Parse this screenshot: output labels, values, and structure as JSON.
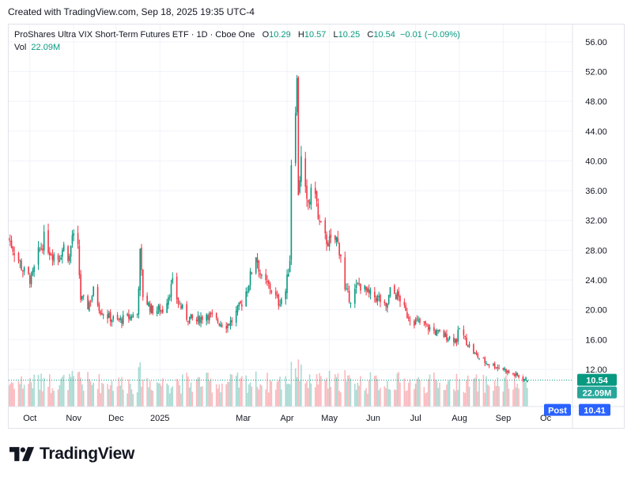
{
  "header": {
    "created_text": "Created with TradingView.com, Sep 18, 2025 19:35 UTC-4"
  },
  "legend": {
    "symbol": "ProShares Ultra VIX Short-Term Futures ETF · 1D · Cboe One",
    "o_label": "O",
    "o_value": "10.29",
    "h_label": "H",
    "h_value": "10.57",
    "l_label": "L",
    "l_value": "10.25",
    "c_label": "C",
    "c_value": "10.54",
    "change": "−0.01 (−0.09%)",
    "vol_label": "Vol",
    "vol_value": "22.09M"
  },
  "badges": {
    "price": "10.54",
    "volume": "22.09M",
    "post_label": "Post",
    "post_value": "10.41"
  },
  "brand": {
    "name": "TradingView"
  },
  "colors": {
    "up": "#089981",
    "down": "#f23645",
    "grid": "#f0f3fa",
    "badge_blue": "#2962ff"
  },
  "chart_data": {
    "type": "candlestick",
    "y_axis": {
      "position": "right",
      "ticks": [
        "12.00",
        "16.00",
        "20.00",
        "24.00",
        "28.00",
        "32.00",
        "36.00",
        "40.00",
        "44.00",
        "48.00",
        "52.00",
        "56.00"
      ],
      "range": [
        7.0,
        58.0
      ]
    },
    "x_axis": {
      "labels": [
        "Oct",
        "Nov",
        "Dec",
        "2025",
        "Mar",
        "Apr",
        "May",
        "Jun",
        "Jul",
        "Aug",
        "Sep",
        "Oc"
      ],
      "range": [
        "2024-09-16",
        "2025-10-20"
      ]
    },
    "grid": true,
    "price_anchors": [
      [
        "2024-09-16",
        29.5
      ],
      [
        "2024-09-20",
        28.0
      ],
      [
        "2024-09-27",
        25.0
      ],
      [
        "2024-10-02",
        24.0
      ],
      [
        "2024-10-07",
        27.5
      ],
      [
        "2024-10-11",
        29.5
      ],
      [
        "2024-10-15",
        28.0
      ],
      [
        "2024-10-21",
        27.0
      ],
      [
        "2024-10-25",
        28.5
      ],
      [
        "2024-10-29",
        27.0
      ],
      [
        "2024-10-31",
        30.0
      ],
      [
        "2024-11-04",
        28.0
      ],
      [
        "2024-11-06",
        21.5
      ],
      [
        "2024-11-11",
        20.5
      ],
      [
        "2024-11-15",
        22.5
      ],
      [
        "2024-11-20",
        20.0
      ],
      [
        "2024-11-26",
        19.0
      ],
      [
        "2024-12-02",
        18.5
      ],
      [
        "2024-12-10",
        19.0
      ],
      [
        "2024-12-16",
        19.5
      ],
      [
        "2024-12-18",
        27.5
      ],
      [
        "2024-12-20",
        22.0
      ],
      [
        "2024-12-26",
        20.0
      ],
      [
        "2025-01-03",
        20.0
      ],
      [
        "2025-01-10",
        23.5
      ],
      [
        "2025-01-14",
        21.0
      ],
      [
        "2025-01-20",
        19.0
      ],
      [
        "2025-01-27",
        18.5
      ],
      [
        "2025-02-03",
        19.5
      ],
      [
        "2025-02-10",
        18.5
      ],
      [
        "2025-02-17",
        18.0
      ],
      [
        "2025-02-21",
        18.5
      ],
      [
        "2025-02-28",
        21.0
      ],
      [
        "2025-03-04",
        23.0
      ],
      [
        "2025-03-10",
        27.5
      ],
      [
        "2025-03-14",
        24.0
      ],
      [
        "2025-03-20",
        23.0
      ],
      [
        "2025-03-26",
        21.0
      ],
      [
        "2025-03-31",
        22.5
      ],
      [
        "2025-04-03",
        27.0
      ],
      [
        "2025-04-04",
        40.0
      ],
      [
        "2025-04-07",
        48.0
      ],
      [
        "2025-04-08",
        50.5
      ],
      [
        "2025-04-09",
        36.0
      ],
      [
        "2025-04-11",
        40.0
      ],
      [
        "2025-04-15",
        34.0
      ],
      [
        "2025-04-21",
        36.5
      ],
      [
        "2025-04-23",
        32.0
      ],
      [
        "2025-04-28",
        29.5
      ],
      [
        "2025-05-02",
        29.0
      ],
      [
        "2025-05-06",
        29.5
      ],
      [
        "2025-05-09",
        27.5
      ],
      [
        "2025-05-12",
        22.5
      ],
      [
        "2025-05-16",
        21.5
      ],
      [
        "2025-05-22",
        23.5
      ],
      [
        "2025-05-29",
        22.0
      ],
      [
        "2025-06-05",
        21.5
      ],
      [
        "2025-06-10",
        20.0
      ],
      [
        "2025-06-13",
        22.5
      ],
      [
        "2025-06-17",
        22.0
      ],
      [
        "2025-06-20",
        21.5
      ],
      [
        "2025-06-24",
        19.5
      ],
      [
        "2025-06-30",
        18.5
      ],
      [
        "2025-07-07",
        18.0
      ],
      [
        "2025-07-15",
        17.0
      ],
      [
        "2025-07-22",
        16.5
      ],
      [
        "2025-07-30",
        16.0
      ],
      [
        "2025-08-01",
        17.5
      ],
      [
        "2025-08-05",
        16.0
      ],
      [
        "2025-08-12",
        14.0
      ],
      [
        "2025-08-19",
        13.0
      ],
      [
        "2025-08-26",
        12.5
      ],
      [
        "2025-09-02",
        12.0
      ],
      [
        "2025-09-05",
        11.5
      ],
      [
        "2025-09-10",
        11.2
      ],
      [
        "2025-09-18",
        10.54
      ]
    ],
    "last": {
      "open": 10.29,
      "high": 10.57,
      "low": 10.25,
      "close": 10.54,
      "volume": "22.09M",
      "post": 10.41
    }
  }
}
